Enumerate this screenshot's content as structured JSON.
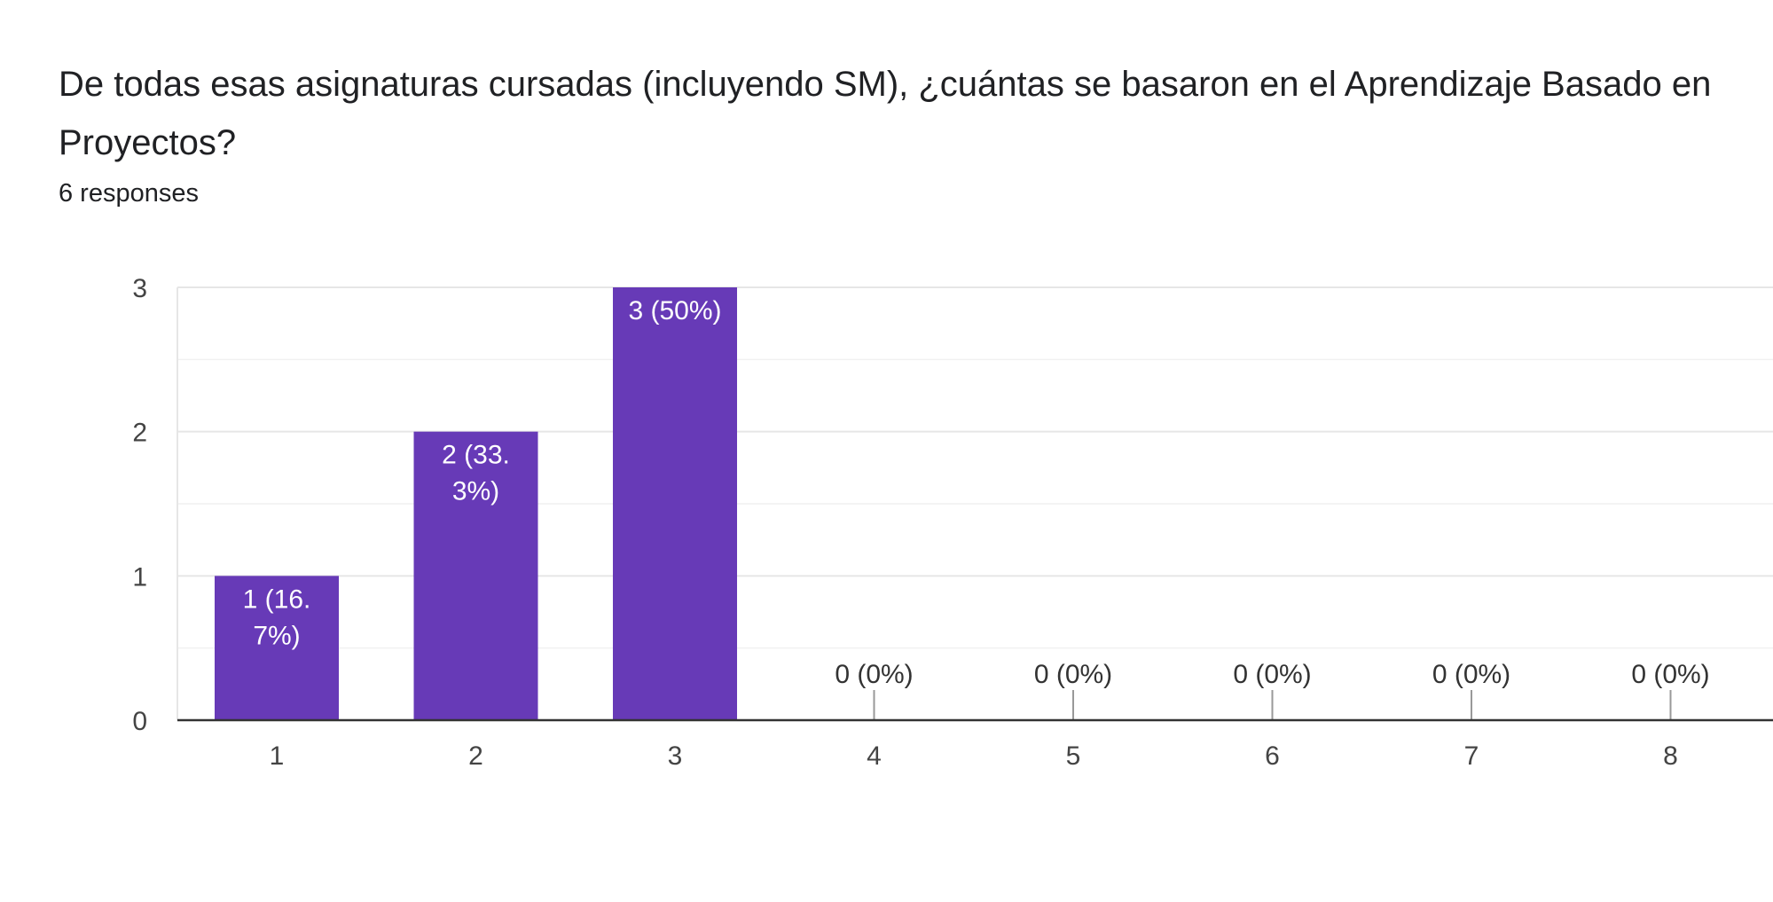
{
  "question": {
    "title": "De todas esas asignaturas cursadas (incluyendo SM), ¿cuántas se basaron en el Aprendizaje Basado en Proyectos?",
    "responses": "6 responses"
  },
  "colors": {
    "bar": "#673ab7",
    "bar_label_inside": "#ffffff",
    "bar_label_outside": "#333333"
  },
  "chart_data": {
    "type": "bar",
    "categories": [
      "1",
      "2",
      "3",
      "4",
      "5",
      "6",
      "7",
      "8"
    ],
    "values": [
      1,
      2,
      3,
      0,
      0,
      0,
      0,
      0
    ],
    "data_labels": [
      [
        "1 (16.",
        "7%)"
      ],
      [
        "2 (33.",
        "3%)"
      ],
      [
        "3 (50%)"
      ],
      [
        "0 (0%)"
      ],
      [
        "0 (0%)"
      ],
      [
        "0 (0%)"
      ],
      [
        "0 (0%)"
      ],
      [
        "0 (0%)"
      ]
    ],
    "yticks": [
      "0",
      "1",
      "2",
      "3"
    ],
    "ylim": [
      0,
      3
    ],
    "grid": true
  }
}
